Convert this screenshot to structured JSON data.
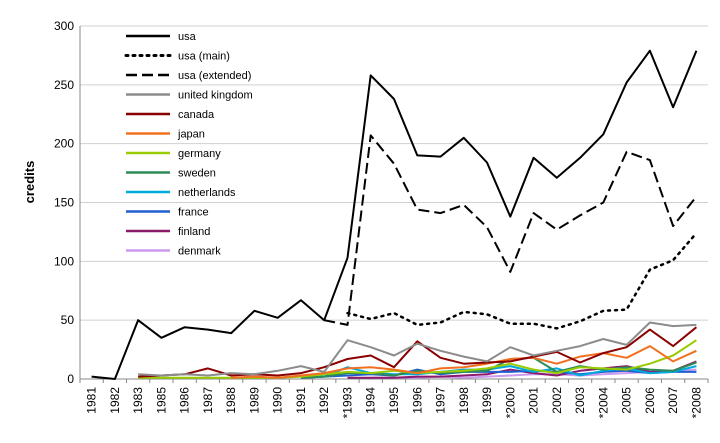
{
  "chart_data": {
    "type": "line",
    "ylabel": "credits",
    "xlabel": "",
    "ylim": [
      0,
      300
    ],
    "yticks": [
      0,
      50,
      100,
      150,
      200,
      250,
      300
    ],
    "grid": "horizontal",
    "legend_position": "top-left",
    "categories": [
      "1981",
      "1982",
      "1983",
      "1985",
      "1986",
      "1987",
      "1988",
      "1989",
      "1990",
      "1991",
      "1992",
      "*1993",
      "1994",
      "1995",
      "1996",
      "1997",
      "1998",
      "1999",
      "*2000",
      "2001",
      "2002",
      "2003",
      "*2004",
      "2005",
      "2006",
      "2007",
      "*2008"
    ],
    "series": [
      {
        "name": "usa",
        "color": "#000000",
        "dash": "solid",
        "width": 2,
        "values": [
          2,
          0,
          50,
          35,
          44,
          42,
          39,
          58,
          52,
          67,
          50,
          103,
          258,
          238,
          190,
          189,
          205,
          184,
          138,
          188,
          171,
          188,
          208,
          252,
          279,
          231,
          279
        ]
      },
      {
        "name": "usa (main)",
        "color": "#000000",
        "dash": "dotted",
        "width": 2.5,
        "values": [
          null,
          null,
          null,
          null,
          null,
          null,
          null,
          null,
          null,
          null,
          null,
          56,
          51,
          56,
          46,
          48,
          57,
          55,
          47,
          47,
          43,
          49,
          58,
          59,
          93,
          101,
          124
        ]
      },
      {
        "name": "usa (extended)",
        "color": "#000000",
        "dash": "dashed",
        "width": 2,
        "values": [
          null,
          null,
          null,
          null,
          null,
          null,
          null,
          null,
          null,
          null,
          50,
          46,
          207,
          183,
          144,
          141,
          148,
          129,
          91,
          141,
          127,
          139,
          150,
          193,
          186,
          130,
          155
        ]
      },
      {
        "name": "united kingdom",
        "color": "#8c8c8c",
        "dash": "solid",
        "width": 2,
        "values": [
          null,
          null,
          4,
          3,
          4,
          3,
          5,
          4,
          7,
          11,
          6,
          33,
          27,
          20,
          30,
          24,
          19,
          15,
          27,
          20,
          24,
          28,
          34,
          29,
          48,
          45,
          46
        ]
      },
      {
        "name": "canada",
        "color": "#8b0000",
        "dash": "solid",
        "width": 2,
        "values": [
          null,
          null,
          2,
          3,
          4,
          9,
          3,
          4,
          3,
          5,
          10,
          17,
          20,
          10,
          32,
          18,
          13,
          14,
          15,
          19,
          23,
          14,
          22,
          27,
          42,
          28,
          44
        ]
      },
      {
        "name": "japan",
        "color": "#f07020",
        "dash": "solid",
        "width": 2,
        "values": [
          null,
          null,
          null,
          null,
          null,
          null,
          1,
          2,
          1,
          3,
          5,
          9,
          10,
          8,
          5,
          9,
          10,
          13,
          17,
          18,
          13,
          19,
          22,
          18,
          28,
          15,
          24
        ]
      },
      {
        "name": "germany",
        "color": "#99cc00",
        "dash": "solid",
        "width": 2,
        "values": [
          null,
          null,
          1,
          1,
          1,
          1,
          1,
          1,
          1,
          2,
          4,
          6,
          5,
          7,
          5,
          6,
          7,
          9,
          13,
          8,
          5,
          10,
          9,
          8,
          13,
          20,
          33
        ]
      },
      {
        "name": "sweden",
        "color": "#2e8b57",
        "dash": "solid",
        "width": 2,
        "values": [
          null,
          null,
          null,
          null,
          null,
          null,
          null,
          null,
          null,
          1,
          2,
          5,
          5,
          3,
          7,
          5,
          6,
          7,
          17,
          18,
          6,
          11,
          8,
          10,
          8,
          7,
          14
        ]
      },
      {
        "name": "netherlands",
        "color": "#00aadd",
        "dash": "solid",
        "width": 2,
        "values": [
          null,
          null,
          null,
          null,
          null,
          null,
          null,
          null,
          null,
          1,
          2,
          10,
          5,
          4,
          4,
          6,
          8,
          8,
          11,
          6,
          9,
          3,
          7,
          9,
          5,
          6,
          11
        ]
      },
      {
        "name": "france",
        "color": "#1f5fd0",
        "dash": "solid",
        "width": 2,
        "values": [
          null,
          null,
          null,
          null,
          null,
          null,
          null,
          null,
          null,
          1,
          2,
          3,
          4,
          3,
          8,
          4,
          6,
          6,
          6,
          7,
          6,
          4,
          6,
          7,
          5,
          6,
          6
        ]
      },
      {
        "name": "finland",
        "color": "#8b1a6b",
        "dash": "solid",
        "width": 2,
        "values": [
          null,
          null,
          null,
          null,
          null,
          null,
          null,
          null,
          null,
          null,
          null,
          1,
          1,
          1,
          2,
          2,
          3,
          4,
          8,
          5,
          3,
          7,
          9,
          11,
          6,
          7,
          15
        ]
      },
      {
        "name": "denmark",
        "color": "#cc99ee",
        "dash": "solid",
        "width": 2,
        "values": [
          null,
          null,
          null,
          null,
          null,
          null,
          null,
          null,
          null,
          null,
          null,
          null,
          1,
          1,
          1,
          2,
          1,
          2,
          3,
          4,
          4,
          3,
          4,
          5,
          6,
          7,
          8
        ]
      }
    ]
  }
}
